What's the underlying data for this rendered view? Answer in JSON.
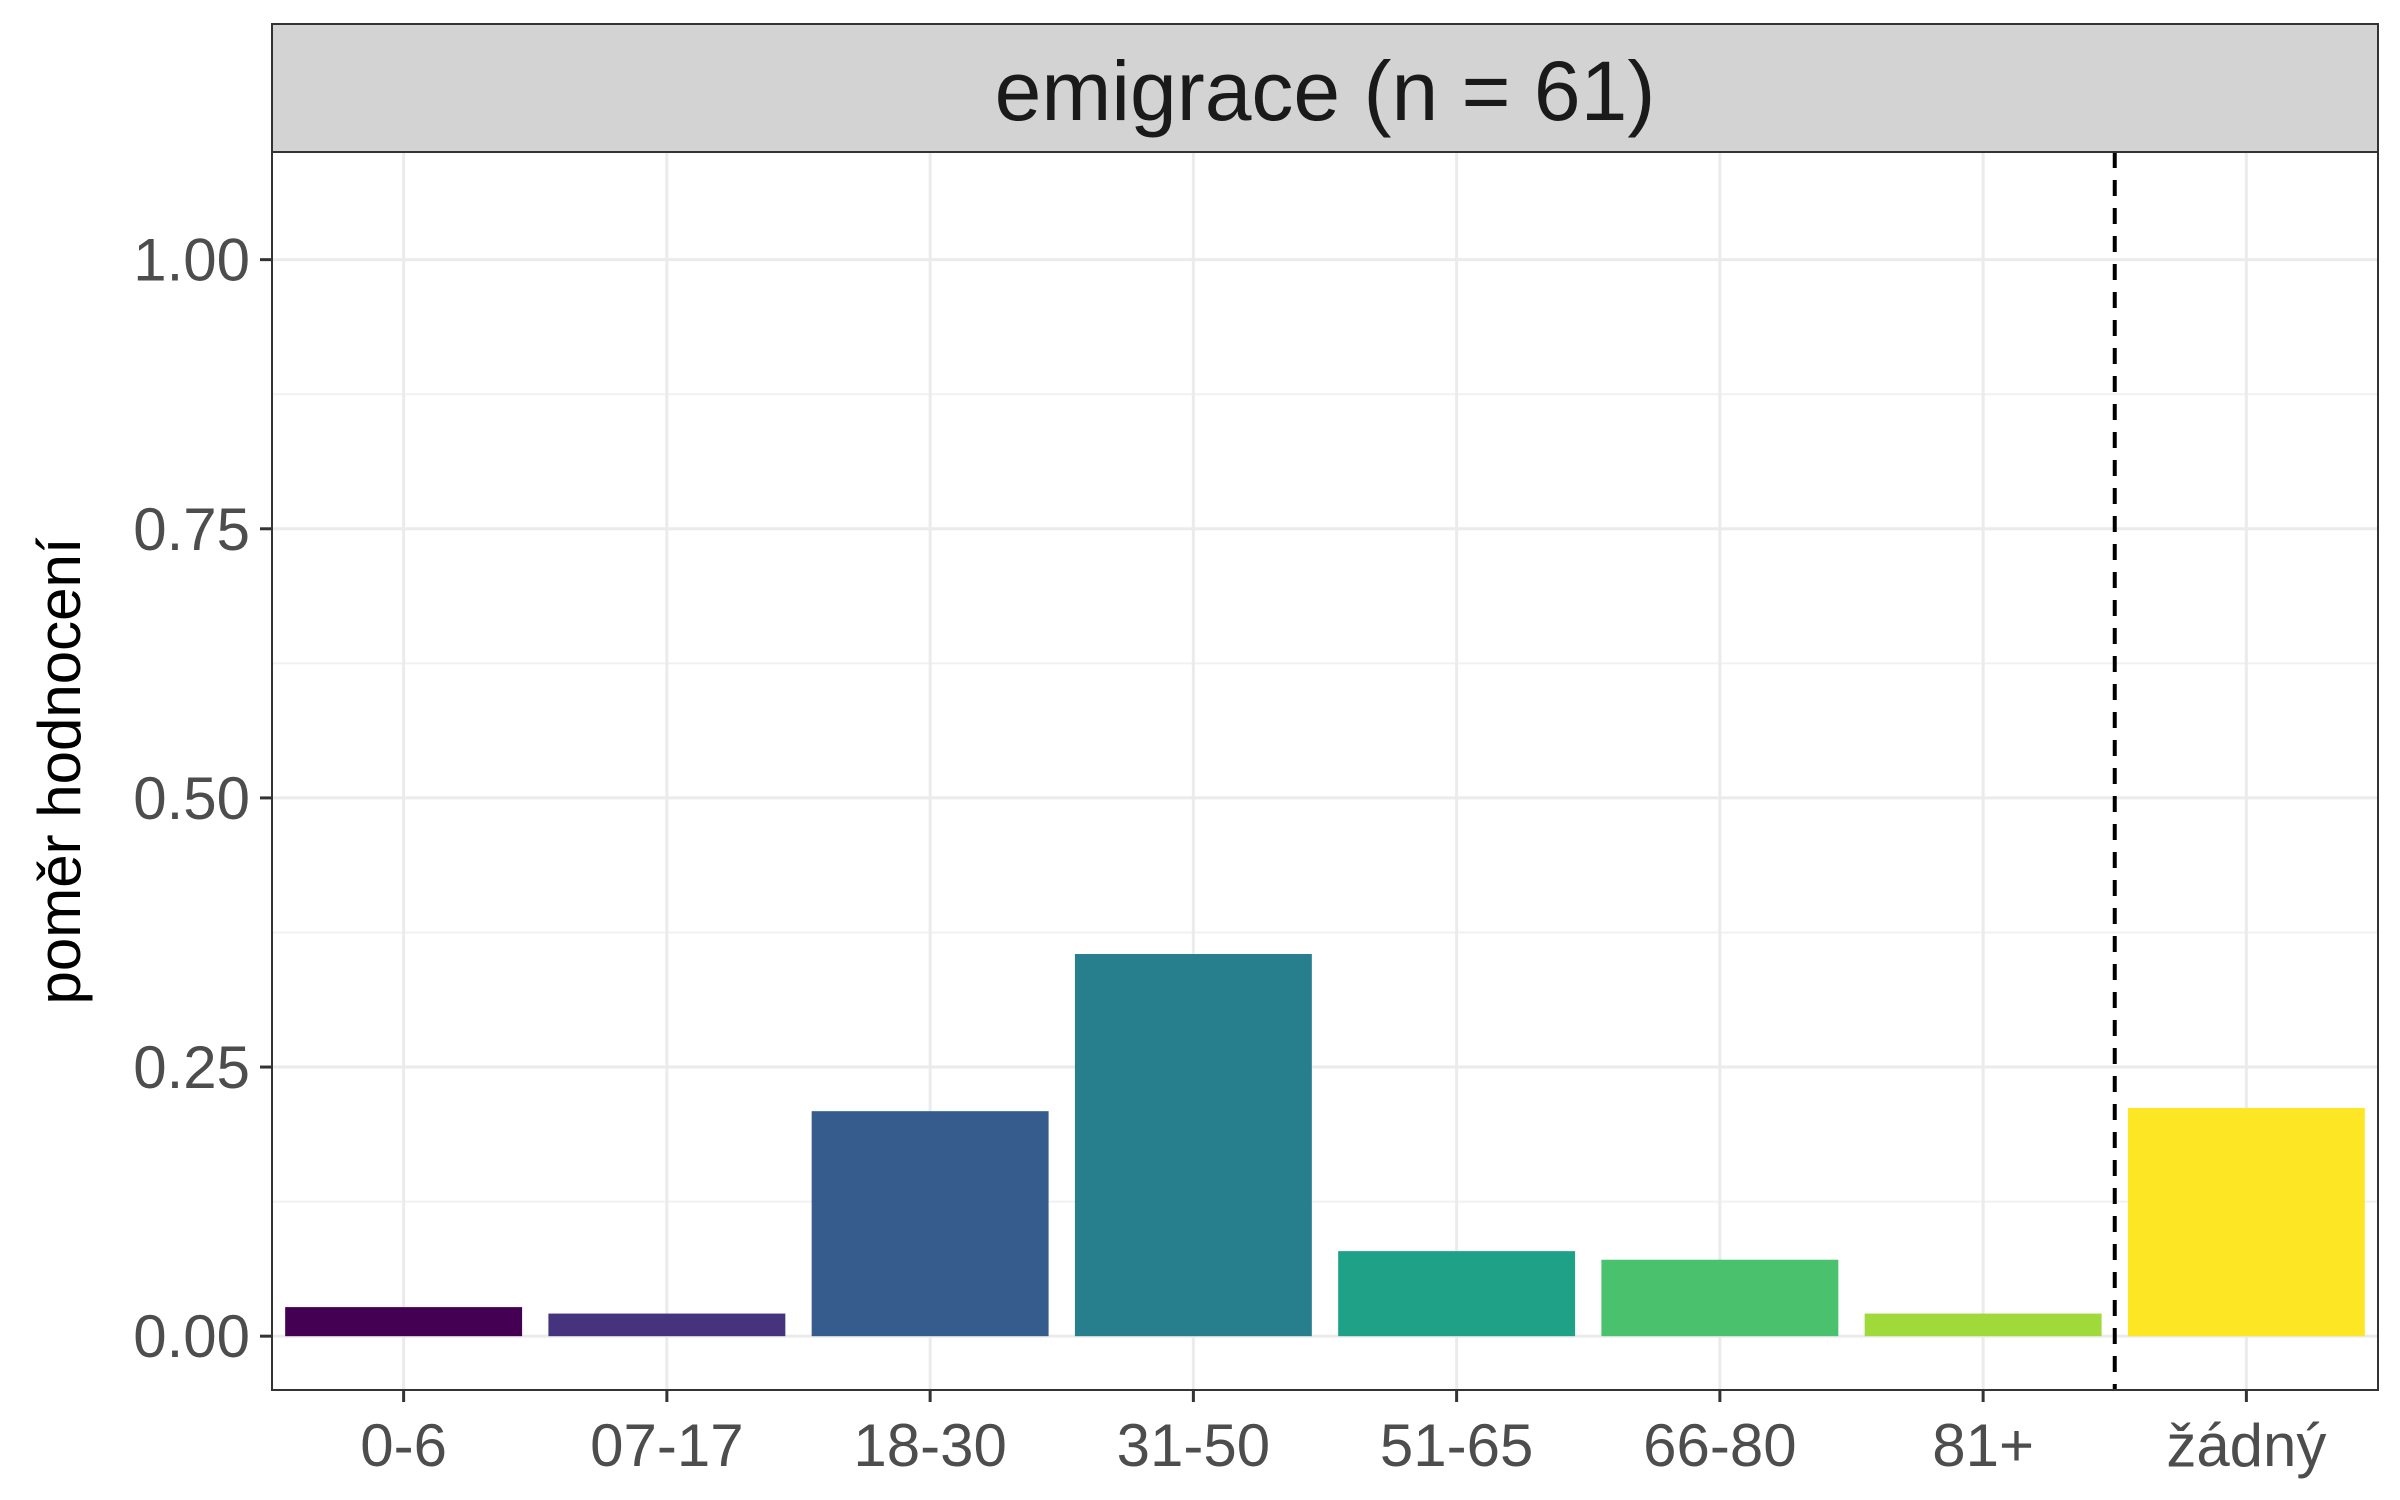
{
  "chart_data": {
    "type": "bar",
    "title": "emigrace (n = 61)",
    "xlabel": "",
    "ylabel": "poměr hodnocení",
    "categories": [
      "0-6",
      "07-17",
      "18-30",
      "31-50",
      "51-65",
      "66-80",
      "81+",
      "žádný"
    ],
    "values": [
      0.027,
      0.021,
      0.209,
      0.355,
      0.079,
      0.071,
      0.021,
      0.212
    ],
    "colors": [
      "#440154",
      "#46337E",
      "#365C8D",
      "#277F8E",
      "#1FA187",
      "#4AC16D",
      "#9FDA3A",
      "#FDE725"
    ],
    "ylim": [
      -0.05,
      1.1
    ],
    "yticks": [
      0.0,
      0.25,
      0.5,
      0.75,
      1.0
    ],
    "ytick_labels": [
      "0.00",
      "0.25",
      "0.50",
      "0.75",
      "1.00"
    ],
    "reference_line": {
      "after_category": "81+",
      "style": "dashed"
    },
    "grid": true,
    "legend": "none"
  }
}
